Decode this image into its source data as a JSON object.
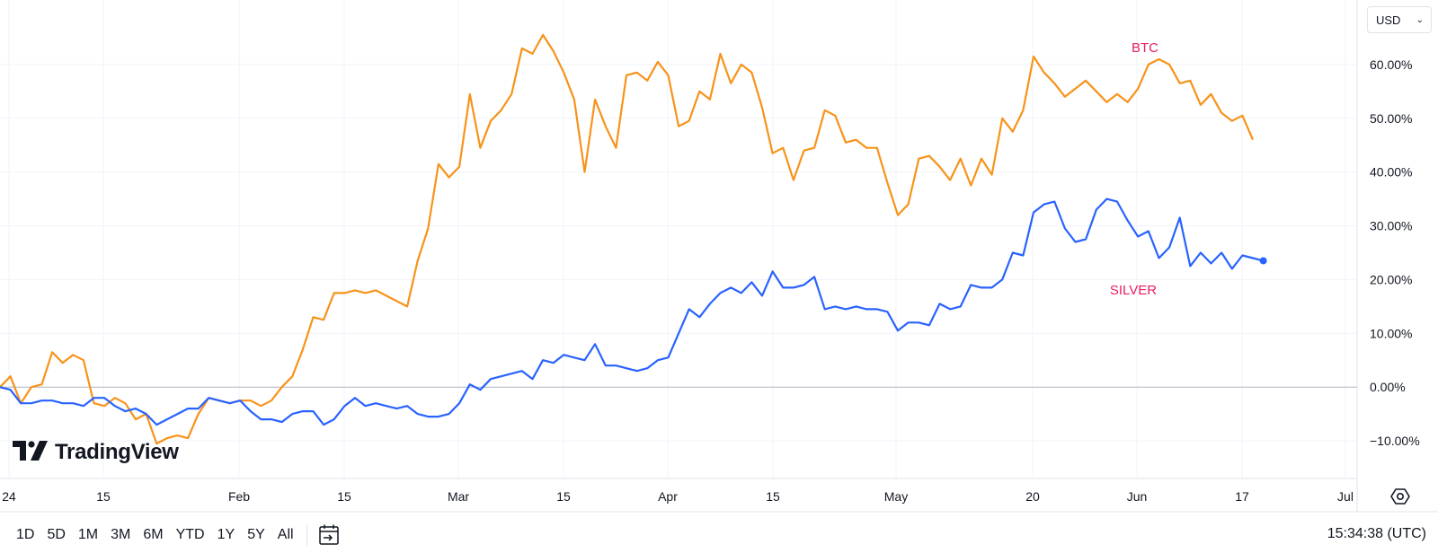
{
  "currency_selector": {
    "label": "USD"
  },
  "brand": {
    "name": "TradingView"
  },
  "time_ranges": [
    "1D",
    "5D",
    "1M",
    "3M",
    "6M",
    "YTD",
    "1Y",
    "5Y",
    "All"
  ],
  "clock": "15:34:38 (UTC)",
  "colors": {
    "btc": "#f7931a",
    "silver": "#2962ff",
    "label": "#e91e63",
    "grid": "#f0f3fa",
    "zero": "#b2b5be"
  },
  "icons": [
    "tradingview-logo-icon",
    "chevron-down-icon",
    "goto-date-icon",
    "settings-icon"
  ],
  "chart_data": {
    "type": "line",
    "x_tick_labels": [
      "24",
      "15",
      "Feb",
      "15",
      "Mar",
      "15",
      "Apr",
      "15",
      "May",
      "20",
      "Jun",
      "17",
      "Jul"
    ],
    "y_tick_labels": [
      "60.00%",
      "50.00%",
      "40.00%",
      "30.00%",
      "20.00%",
      "10.00%",
      "0.00%",
      "−10.00%"
    ],
    "ylim": [
      -17,
      72
    ],
    "y_unit": "%",
    "grid": true,
    "series": [
      {
        "name": "BTC",
        "values": [
          0.0,
          2.0,
          -3.0,
          0.0,
          0.5,
          6.5,
          4.5,
          6.0,
          5.0,
          -3.0,
          -3.5,
          -2.0,
          -3.0,
          -6.0,
          -5.0,
          -10.5,
          -9.5,
          -9.0,
          -9.5,
          -5.0,
          -2.0,
          -2.5,
          -3.0,
          -2.5,
          -2.5,
          -3.5,
          -2.5,
          0.0,
          2.0,
          7.0,
          13.0,
          12.5,
          17.5,
          17.5,
          18.0,
          17.5,
          18.0,
          17.0,
          16.0,
          15.0,
          23.5,
          29.5,
          41.5,
          39.0,
          41.0,
          54.5,
          44.5,
          49.5,
          51.5,
          54.5,
          63.0,
          62.0,
          65.5,
          62.5,
          58.5,
          53.5,
          40.0,
          53.5,
          48.5,
          44.5,
          58.0,
          58.5,
          57.0,
          60.5,
          58.0,
          48.5,
          49.5,
          55.0,
          53.5,
          62.0,
          56.5,
          60.0,
          58.5,
          52.0,
          43.5,
          44.5,
          38.5,
          44.0,
          44.5,
          51.5,
          50.5,
          45.5,
          46.0,
          44.5,
          44.5,
          38.0,
          32.0,
          34.0,
          42.5,
          43.0,
          41.0,
          38.5,
          42.5,
          37.5,
          42.5,
          39.5,
          50.0,
          47.5,
          51.5,
          61.5,
          58.5,
          56.5,
          54.0,
          55.5,
          57.0,
          55.0,
          53.0,
          54.5,
          53.0,
          55.5,
          60.0,
          61.0,
          60.0,
          56.5,
          57.0,
          52.5,
          54.5,
          51.0,
          49.5,
          50.5,
          46.0
        ]
      },
      {
        "name": "SILVER",
        "values": [
          0.0,
          -0.5,
          -3.0,
          -3.0,
          -2.5,
          -2.5,
          -3.0,
          -3.0,
          -3.5,
          -2.0,
          -2.0,
          -3.5,
          -4.5,
          -4.0,
          -5.0,
          -7.0,
          -6.0,
          -5.0,
          -4.0,
          -4.0,
          -2.0,
          -2.5,
          -3.0,
          -2.5,
          -4.5,
          -6.0,
          -6.0,
          -6.5,
          -5.0,
          -4.5,
          -4.5,
          -7.0,
          -6.0,
          -3.5,
          -2.0,
          -3.5,
          -3.0,
          -3.5,
          -4.0,
          -3.5,
          -5.0,
          -5.5,
          -5.5,
          -5.0,
          -3.0,
          0.5,
          -0.5,
          1.5,
          2.0,
          2.5,
          3.0,
          1.5,
          5.0,
          4.5,
          6.0,
          5.5,
          5.0,
          8.0,
          4.0,
          4.0,
          3.5,
          3.0,
          3.5,
          5.0,
          5.5,
          10.0,
          14.5,
          13.0,
          15.5,
          17.5,
          18.5,
          17.5,
          19.5,
          17.0,
          21.5,
          18.5,
          18.5,
          19.0,
          20.5,
          14.5,
          15.0,
          14.5,
          15.0,
          14.5,
          14.5,
          14.0,
          10.5,
          12.0,
          12.0,
          11.5,
          15.5,
          14.5,
          15.0,
          19.0,
          18.5,
          18.5,
          20.0,
          25.0,
          24.5,
          32.5,
          34.0,
          34.5,
          29.5,
          27.0,
          27.5,
          33.0,
          35.0,
          34.5,
          31.0,
          28.0,
          29.0,
          24.0,
          26.0,
          31.5,
          22.5,
          25.0,
          23.0,
          25.0,
          22.0,
          24.5,
          24.0,
          23.5
        ]
      }
    ]
  }
}
